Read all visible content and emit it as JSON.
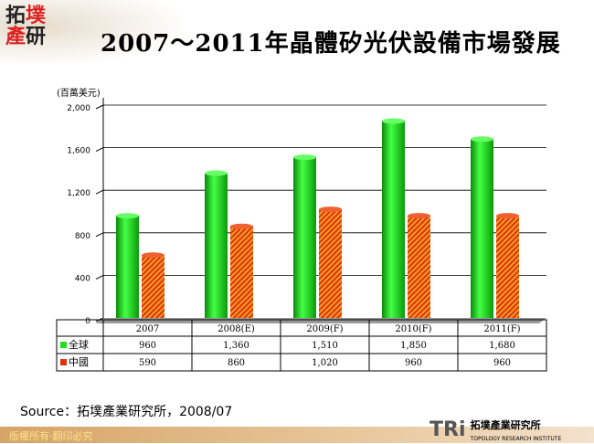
{
  "header": {
    "logo_text": "拓墣產研",
    "title": "2007～2011年晶體矽光伏設備市場發展"
  },
  "chart_data": {
    "type": "bar",
    "title": "2007～2011年晶體矽光伏設備市場發展",
    "ylabel": "(百萬美元)",
    "ylim": [
      0,
      2000
    ],
    "yticks": [
      "0",
      "400",
      "800",
      "1,200",
      "1,600",
      "2,000"
    ],
    "grid": true,
    "categories": [
      "2007",
      "2008(E)",
      "2009(F)",
      "2010(F)",
      "2011(F)"
    ],
    "series": [
      {
        "name": "全球",
        "values": [
          960,
          1360,
          1510,
          1850,
          1680
        ],
        "labels": [
          "960",
          "1,360",
          "1,510",
          "1,850",
          "1,680"
        ],
        "color": "#22dd22"
      },
      {
        "name": "中國",
        "values": [
          590,
          860,
          1020,
          960,
          960
        ],
        "labels": [
          "590",
          "860",
          "1,020",
          "960",
          "960"
        ],
        "color": "#e03010"
      }
    ]
  },
  "source": "Source：拓墣產業研究所，2008/07",
  "footer": {
    "rights": "版權所有‧翻印必究",
    "brand": "TRi",
    "brand_cn": "拓墣產業研究所",
    "brand_en": "TOPOLOGY RESEARCH INSTITUTE"
  }
}
